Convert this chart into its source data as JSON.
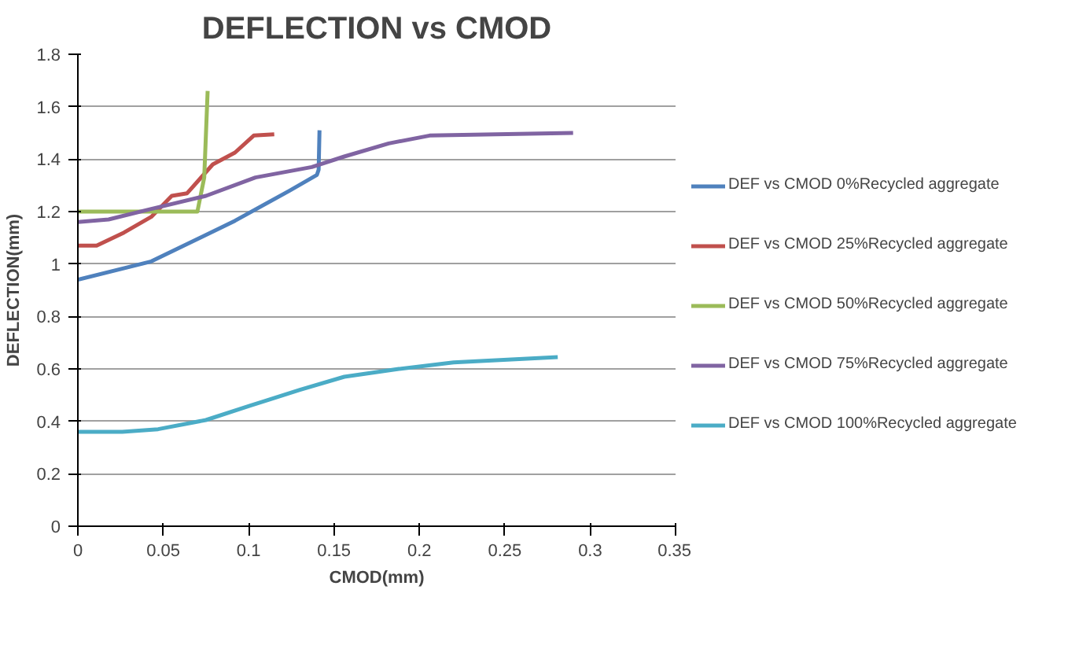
{
  "chart_data": {
    "type": "line",
    "title": "DEFLECTION vs CMOD",
    "xlabel": "CMOD(mm)",
    "ylabel": "DEFLECTION(mm)",
    "xlim": [
      0,
      0.35
    ],
    "xticks": [
      0,
      0.05,
      0.1,
      0.15,
      0.2,
      0.25,
      0.3,
      0.35
    ],
    "ylim": [
      0,
      1.8
    ],
    "yticks": [
      0,
      0.2,
      0.4,
      0.6,
      0.8,
      1,
      1.2,
      1.4,
      1.6,
      1.8
    ],
    "grid": "y",
    "legend": "right",
    "marker": "none",
    "line_style": "solid",
    "series": [
      {
        "name": "DEF vs CMOD 0%Recycled aggregate",
        "color": "#4f81bd",
        "x": [
          0,
          0.043,
          0.092,
          0.124,
          0.14,
          0.141,
          0.1415
        ],
        "values": [
          0.94,
          1.01,
          1.165,
          1.28,
          1.34,
          1.36,
          1.51
        ]
      },
      {
        "name": "DEF vs CMOD 25%Recycled aggregate",
        "color": "#c0504d",
        "x": [
          0,
          0.011,
          0.027,
          0.043,
          0.055,
          0.064,
          0.079,
          0.092,
          0.103,
          0.115
        ],
        "values": [
          1.07,
          1.07,
          1.12,
          1.18,
          1.26,
          1.27,
          1.38,
          1.425,
          1.49,
          1.495
        ]
      },
      {
        "name": "DEF vs CMOD 50%Recycled aggregate",
        "color": "#9bbb59",
        "x": [
          0,
          0.07,
          0.074,
          0.076
        ],
        "values": [
          1.2,
          1.2,
          1.33,
          1.66
        ]
      },
      {
        "name": "DEF vs CMOD 75%Recycled aggregate",
        "color": "#8064a2",
        "x": [
          0,
          0.018,
          0.043,
          0.075,
          0.104,
          0.137,
          0.156,
          0.182,
          0.206,
          0.29
        ],
        "values": [
          1.16,
          1.17,
          1.21,
          1.26,
          1.33,
          1.37,
          1.41,
          1.46,
          1.49,
          1.5
        ]
      },
      {
        "name": "DEF vs CMOD 100%Recycled aggregate",
        "color": "#4bacc6",
        "x": [
          0,
          0.026,
          0.047,
          0.075,
          0.101,
          0.13,
          0.156,
          0.188,
          0.22,
          0.281
        ],
        "values": [
          0.36,
          0.36,
          0.37,
          0.405,
          0.46,
          0.52,
          0.57,
          0.6,
          0.625,
          0.645
        ]
      }
    ]
  }
}
